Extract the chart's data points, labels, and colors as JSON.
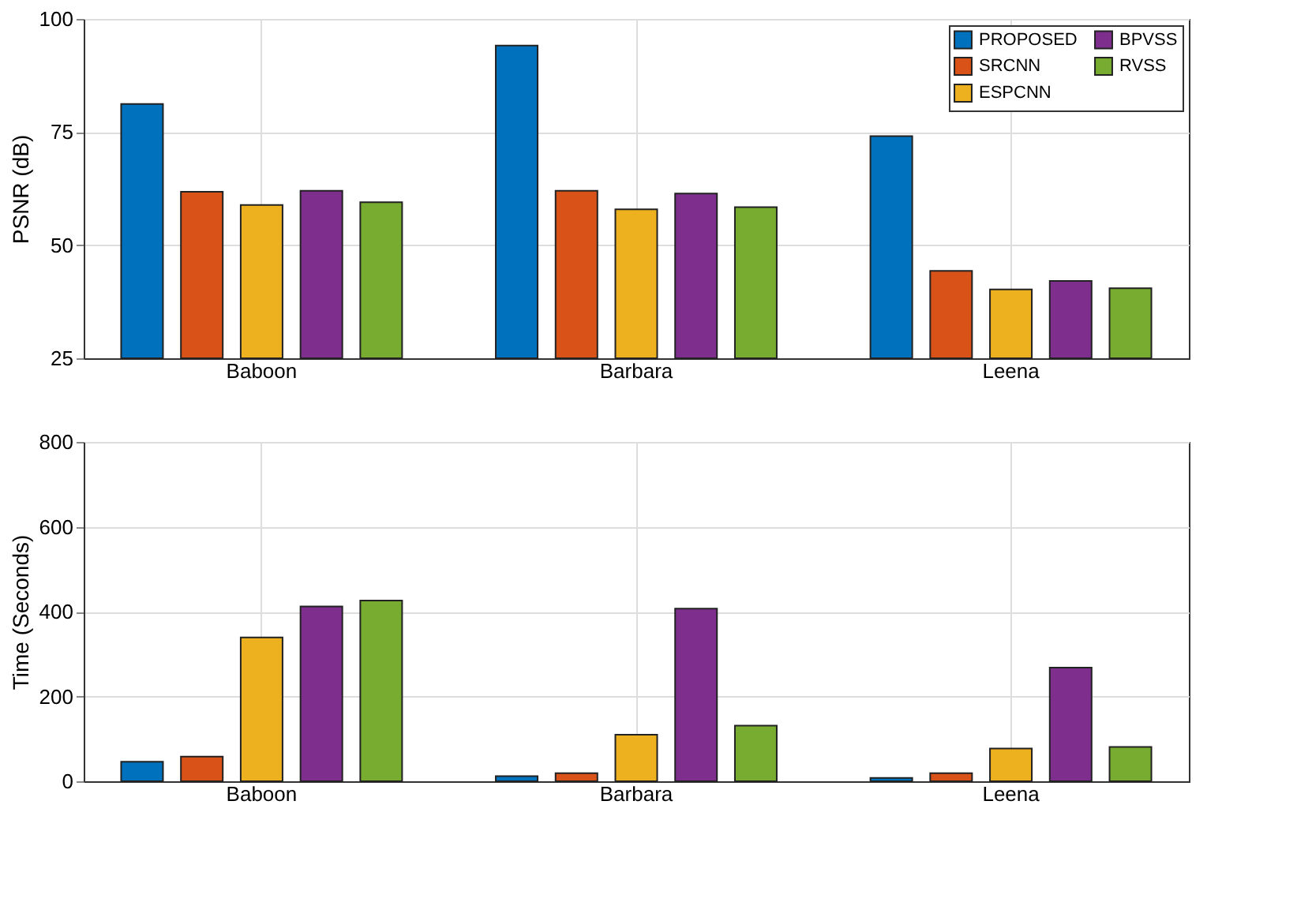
{
  "chart_data": [
    {
      "type": "bar",
      "ylabel": "PSNR (dB)",
      "categories": [
        "Baboon",
        "Barbara",
        "Leena"
      ],
      "ylim": [
        25,
        100
      ],
      "yticks": [
        25,
        50,
        75,
        100
      ],
      "grid": true,
      "legend": "top right",
      "series": [
        {
          "name": "PROPOSED",
          "color": "#0072bd",
          "values": [
            81.2,
            94.1,
            74.1
          ]
        },
        {
          "name": "SRCNN",
          "color": "#d95319",
          "values": [
            61.8,
            62,
            44.3
          ]
        },
        {
          "name": "ESPCNN",
          "color": "#edb120",
          "values": [
            58.9,
            57.9,
            40.2
          ]
        },
        {
          "name": "BPVSS",
          "color": "#7e2f8e",
          "values": [
            62,
            61.4,
            42.1
          ]
        },
        {
          "name": "RVSS",
          "color": "#77ac30",
          "values": [
            59.5,
            58.4,
            40.5
          ]
        }
      ]
    },
    {
      "type": "bar",
      "ylabel": "Time (Seconds)",
      "categories": [
        "Baboon",
        "Barbara",
        "Leena"
      ],
      "ylim": [
        0,
        800
      ],
      "yticks": [
        0,
        200,
        400,
        600,
        800
      ],
      "grid": true,
      "legend": "top right",
      "series": [
        {
          "name": "PROPOSED",
          "color": "#0072bd",
          "values": [
            46,
            12,
            8
          ]
        },
        {
          "name": "SRCNN",
          "color": "#d95319",
          "values": [
            58,
            19,
            19
          ]
        },
        {
          "name": "ESPCNN",
          "color": "#edb120",
          "values": [
            339,
            110,
            77
          ]
        },
        {
          "name": "BPVSS",
          "color": "#7e2f8e",
          "values": [
            412,
            407,
            268
          ]
        },
        {
          "name": "RVSS",
          "color": "#77ac30",
          "values": [
            426,
            131,
            81
          ]
        }
      ]
    }
  ]
}
